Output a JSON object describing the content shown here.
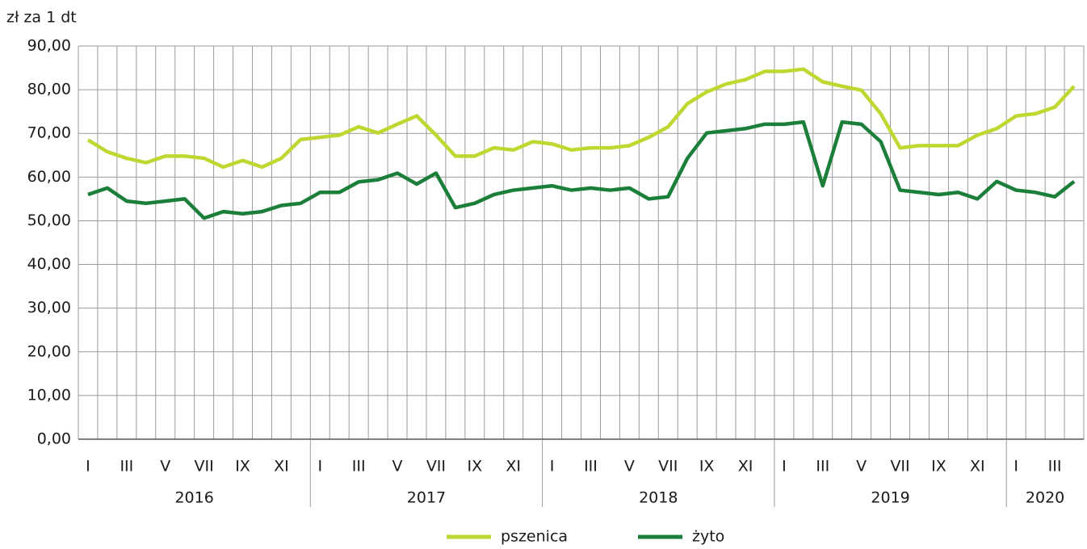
{
  "chart_data": {
    "type": "line",
    "y_axis_label": "zł za 1 dt",
    "categories": [
      "I",
      null,
      "III",
      null,
      "V",
      null,
      "VII",
      null,
      "IX",
      null,
      "XI",
      null,
      "I",
      null,
      "III",
      null,
      "V",
      null,
      "VII",
      null,
      "IX",
      null,
      "XI",
      null,
      "I",
      null,
      "III",
      null,
      "V",
      null,
      "VII",
      null,
      "IX",
      null,
      "XI",
      null,
      "I",
      null,
      "III",
      null,
      "V",
      null,
      "VII",
      null,
      "IX",
      null,
      "XI",
      null,
      "I",
      null,
      "III",
      null
    ],
    "years": [
      "2016",
      "2017",
      "2018",
      "2019",
      "2020"
    ],
    "series": [
      {
        "name": "pszenica",
        "color": "#bfd730",
        "values": [
          68.5,
          65.8,
          64.3,
          63.3,
          64.8,
          64.8,
          64.3,
          62.3,
          63.8,
          62.3,
          64.3,
          68.6,
          69.1,
          69.6,
          71.5,
          70.1,
          72.1,
          74.0,
          69.6,
          64.8,
          64.8,
          66.7,
          66.2,
          68.1,
          67.6,
          66.2,
          66.7,
          66.7,
          67.2,
          69.1,
          71.5,
          76.8,
          79.5,
          81.3,
          82.3,
          84.2,
          84.2,
          84.7,
          81.8,
          80.8,
          79.9,
          74.5,
          66.7,
          67.2,
          67.2,
          67.2,
          69.6,
          71.1,
          74.0,
          74.5,
          76.0,
          80.8
        ]
      },
      {
        "name": "żyto",
        "color": "#1b7f3a",
        "values": [
          56.0,
          57.5,
          54.5,
          54.0,
          54.5,
          55.0,
          50.6,
          52.1,
          51.6,
          52.1,
          53.5,
          54.0,
          56.5,
          56.5,
          58.9,
          59.4,
          60.9,
          58.4,
          60.9,
          53.0,
          54.0,
          56.0,
          57.0,
          57.5,
          58.0,
          57.0,
          57.5,
          57.0,
          57.5,
          55.0,
          55.5,
          64.3,
          70.1,
          70.6,
          71.1,
          72.1,
          72.1,
          72.6,
          58.0,
          72.6,
          72.1,
          68.1,
          57.0,
          56.5,
          56.0,
          56.5,
          55.0,
          59.0,
          57.0,
          56.5,
          55.5,
          59.0
        ]
      }
    ],
    "ylim": [
      0,
      90
    ],
    "yticks": [
      {
        "value": 0,
        "label": "0,00"
      },
      {
        "value": 10,
        "label": "10,00"
      },
      {
        "value": 20,
        "label": "20,00"
      },
      {
        "value": 30,
        "label": "30,00"
      },
      {
        "value": 40,
        "label": "40,00"
      },
      {
        "value": 50,
        "label": "50,00"
      },
      {
        "value": 60,
        "label": "60,00"
      },
      {
        "value": 70,
        "label": "70,00"
      },
      {
        "value": 80,
        "label": "80,00"
      },
      {
        "value": 90,
        "label": "90,00"
      }
    ],
    "grid": true,
    "legend": "bottom"
  }
}
